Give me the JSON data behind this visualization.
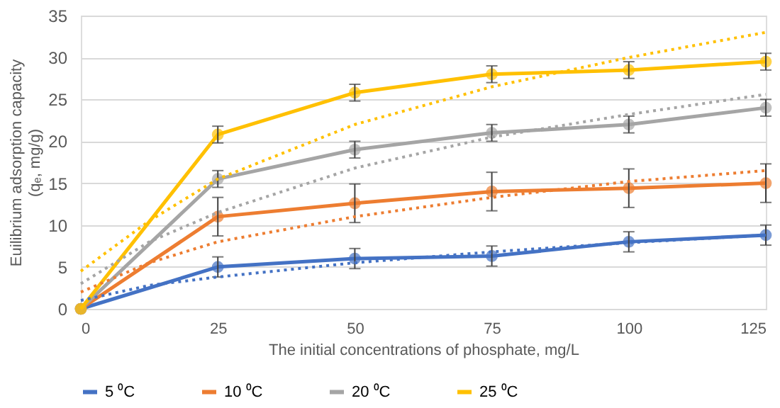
{
  "chart_data": {
    "type": "line",
    "xlabel": "The initial concentrations of phosphate, mg/L",
    "ylabel": "Euilibrium adsorption capacity (qₑ, mg/g)",
    "x": [
      0,
      25,
      50,
      75,
      100,
      125
    ],
    "xlim": [
      0,
      125
    ],
    "xticks": [
      0,
      25,
      50,
      75,
      100,
      125
    ],
    "ylim": [
      0,
      35
    ],
    "yticks": [
      0,
      5,
      10,
      15,
      20,
      25,
      30,
      35
    ],
    "grid": "y",
    "legend": "bottom",
    "marker": "circle",
    "line_style": "solid",
    "series": [
      {
        "name": "5 ⁰C",
        "color": "#4472c4",
        "values": [
          0,
          5,
          6,
          6.3,
          8,
          8.8
        ],
        "errors": [
          null,
          1.2,
          1.2,
          1.2,
          1.2,
          1.2
        ]
      },
      {
        "name": "10 ⁰C",
        "color": "#ed7d31",
        "values": [
          0,
          11,
          12.6,
          14,
          14.4,
          15
        ],
        "errors": [
          null,
          2.3,
          2.3,
          2.3,
          2.3,
          2.3
        ]
      },
      {
        "name": "20 ⁰C",
        "color": "#a5a5a5",
        "values": [
          0,
          15.5,
          19,
          21,
          22,
          24
        ],
        "errors": [
          null,
          1,
          1,
          1,
          1,
          1
        ]
      },
      {
        "name": "25 ⁰C",
        "color": "#ffc000",
        "values": [
          0,
          20.8,
          25.8,
          28,
          28.5,
          29.5
        ],
        "errors": [
          null,
          1,
          1,
          1,
          1,
          1
        ]
      },
      {
        "type": "line",
        "color": "#4472c4",
        "line_style": "dotted",
        "marker": "none",
        "x": [
          0,
          12.5,
          25,
          50,
          75,
          100,
          125
        ],
        "values": [
          1,
          2.8,
          3.8,
          5.5,
          6.8,
          7.9,
          8.8
        ]
      },
      {
        "type": "line",
        "color": "#ed7d31",
        "line_style": "dotted",
        "marker": "none",
        "x": [
          0,
          12.5,
          25,
          50,
          75,
          100,
          125
        ],
        "values": [
          2,
          5.5,
          8,
          11,
          13.3,
          15.2,
          16.5
        ]
      },
      {
        "type": "line",
        "color": "#a5a5a5",
        "line_style": "dotted",
        "marker": "none",
        "x": [
          0,
          12.5,
          25,
          50,
          75,
          100,
          125
        ],
        "values": [
          3,
          8,
          11.5,
          16.8,
          20.5,
          23.2,
          25.6
        ]
      },
      {
        "type": "line",
        "color": "#ffc000",
        "line_style": "dotted",
        "marker": "none",
        "x": [
          0,
          12.5,
          25,
          50,
          75,
          100,
          125
        ],
        "values": [
          4.5,
          10.5,
          15.5,
          22,
          26.5,
          30,
          33
        ]
      }
    ]
  }
}
